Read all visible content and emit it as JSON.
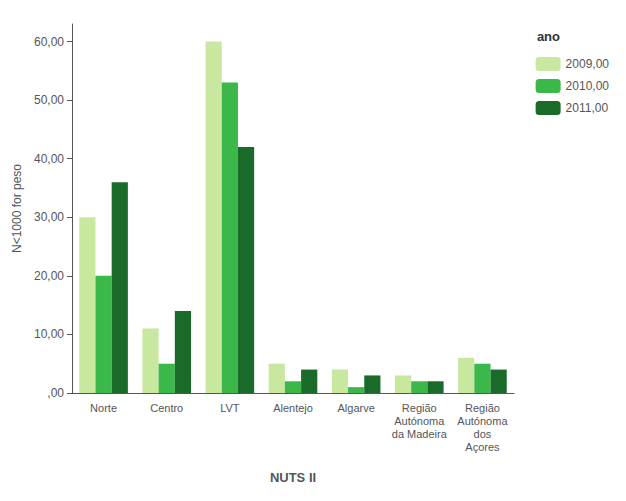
{
  "chart_data": {
    "type": "bar",
    "categories": [
      "Norte",
      "Centro",
      "LVT",
      "Alentejo",
      "Algarve",
      "Região\nAutónoma\nda Madeira",
      "Região\nAutónoma\ndos\nAçores"
    ],
    "series": [
      {
        "name": "2009,00",
        "color": "#c8e8a0",
        "values": [
          30,
          11,
          60,
          5,
          4,
          3,
          6
        ]
      },
      {
        "name": "2010,00",
        "color": "#3cb84a",
        "values": [
          20,
          5,
          53,
          2,
          1,
          2,
          5
        ]
      },
      {
        "name": "2011,00",
        "color": "#1a6b2a",
        "values": [
          36,
          14,
          42,
          4,
          3,
          2,
          4
        ]
      }
    ],
    "xlabel": "NUTS II",
    "ylabel": "N<1000 for peso",
    "legend_title": "ano",
    "ylim": [
      0,
      63
    ],
    "yticks": [
      {
        "value": 0,
        "label": ",00"
      },
      {
        "value": 10,
        "label": "10,00"
      },
      {
        "value": 20,
        "label": "20,00"
      },
      {
        "value": 30,
        "label": "30,00"
      },
      {
        "value": 40,
        "label": "40,00"
      },
      {
        "value": 50,
        "label": "50,00"
      },
      {
        "value": 60,
        "label": "60,00"
      }
    ],
    "grid": false,
    "legend": "right"
  }
}
